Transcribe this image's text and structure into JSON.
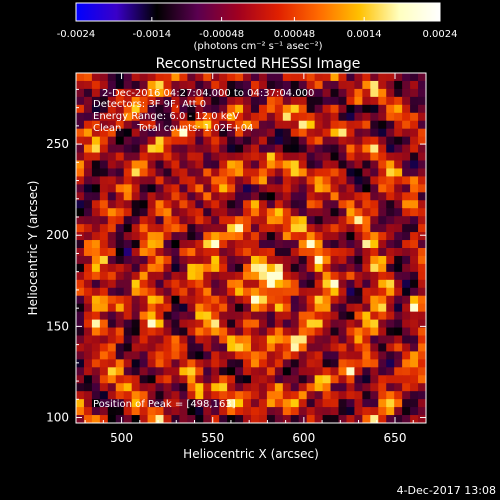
{
  "colorbar": {
    "ticks": [
      "-0.0024",
      "-0.0014",
      "-0.00048",
      "0.00048",
      "0.0014",
      "0.0024"
    ],
    "tick_values": [
      -0.0024,
      -0.0014,
      -0.00048,
      0.00048,
      0.0014,
      0.0024
    ],
    "range": [
      -0.0024,
      0.0024
    ],
    "units_label": "(photons cm⁻² s⁻¹ asec⁻²)",
    "colors": [
      "#0000ff",
      "#3a00c8",
      "#000000",
      "#5a0050",
      "#a00020",
      "#e02000",
      "#ff6a00",
      "#ffc000",
      "#ffffc0",
      "#ffffff"
    ]
  },
  "chart_data": {
    "type": "heatmap",
    "title": "Reconstructed RHESSI Image",
    "xlabel": "Heliocentric X (arcsec)",
    "ylabel": "Heliocentric Y (arcsec)",
    "xlim": [
      475,
      667
    ],
    "ylim": [
      97,
      289
    ],
    "x_ticks": [
      500,
      550,
      600,
      650
    ],
    "y_ticks": [
      100,
      150,
      200,
      250
    ],
    "peak": [
      498,
      163
    ],
    "info_lines": [
      "2-Dec-2016 04:27:04.000 to 04:37:04.000",
      "Detectors: 3F 9F, Att 0",
      "Energy Range: 6.0 - 12.0 keV",
      "Clean     Total counts: 1.02E+04"
    ],
    "peak_label": "Position of Peak = [498,163]"
  },
  "footer": {
    "timestamp": "4-Dec-2017 13:08"
  }
}
